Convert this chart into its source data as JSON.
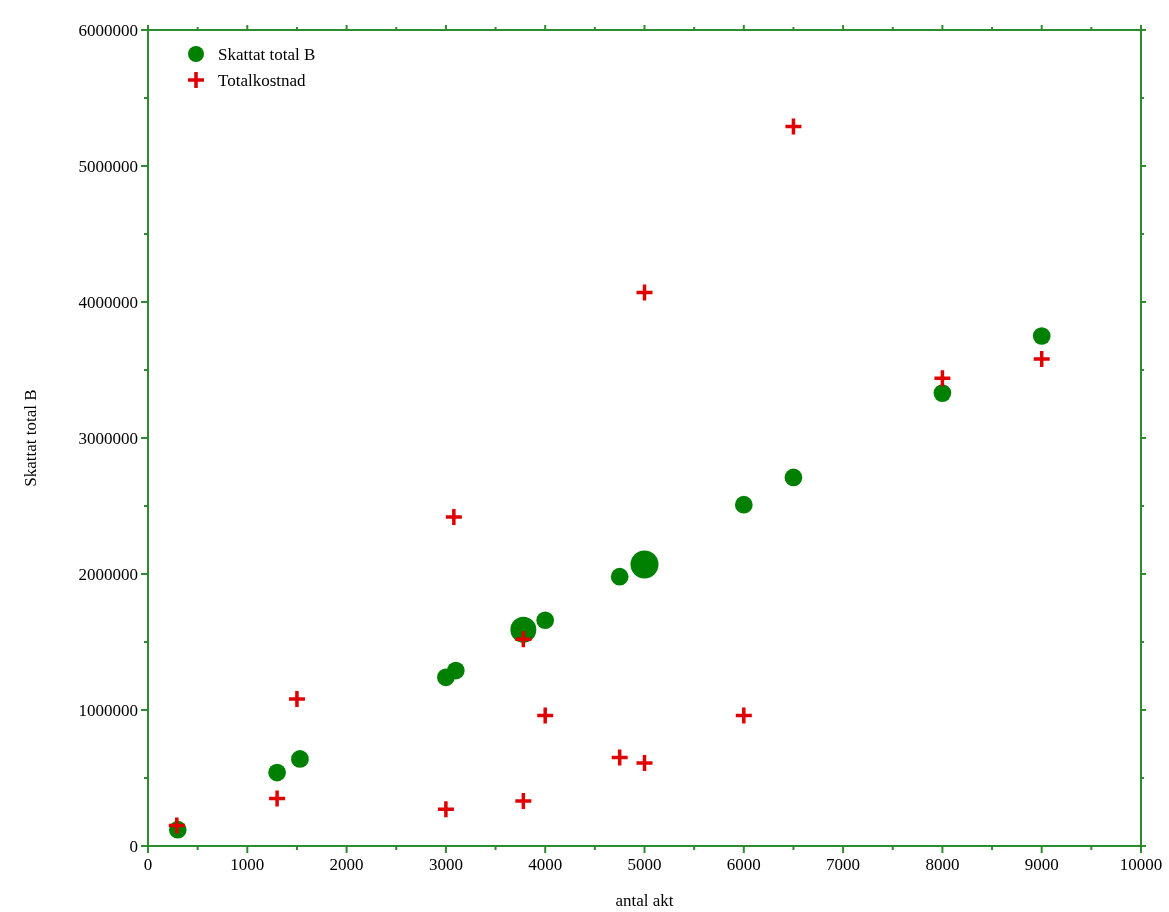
{
  "chart_data": {
    "type": "scatter",
    "xlabel": "antal akt",
    "ylabel": "Skattat total  B",
    "legend": "top left",
    "grid": false,
    "xlim": [
      0,
      10000
    ],
    "ylim": [
      0,
      6000000
    ],
    "xticks": [
      0,
      {
        "value": 500,
        "label": null
      },
      1000,
      {
        "value": 1500,
        "label": null
      },
      2000,
      {
        "value": 2500,
        "label": null
      },
      3000,
      {
        "value": 3500,
        "label": null
      },
      4000,
      {
        "value": 4500,
        "label": null
      },
      5000,
      {
        "value": 5500,
        "label": null
      },
      6000,
      {
        "value": 6500,
        "label": null
      },
      7000,
      {
        "value": 7500,
        "label": null
      },
      8000,
      {
        "value": 8500,
        "label": null
      },
      9000,
      {
        "value": 9500,
        "label": null
      },
      10000
    ],
    "yticks": [
      0,
      {
        "value": 500000,
        "label": null
      },
      1000000,
      {
        "value": 1500000,
        "label": null
      },
      2000000,
      {
        "value": 2500000,
        "label": null
      },
      3000000,
      {
        "value": 3500000,
        "label": null
      },
      4000000,
      {
        "value": 4500000,
        "label": null
      },
      5000000,
      {
        "value": 5500000,
        "label": null
      },
      6000000
    ],
    "series": [
      {
        "name": "Skattat total  B",
        "type": "bubble",
        "color": "#008000",
        "marker": "circle",
        "x": [
          300,
          1300,
          1530,
          3000,
          3100,
          3780,
          4000,
          4750,
          5000,
          6000,
          6500,
          8000,
          9000
        ],
        "values": [
          120000,
          540000,
          640000,
          1240000,
          1290000,
          1590000,
          1660000,
          1980000,
          2070000,
          2510000,
          2710000,
          3330000,
          3750000
        ],
        "sizes": [
          0.4,
          0.4,
          0.4,
          0.4,
          0.4,
          0.86,
          0.4,
          0.4,
          1,
          0.4,
          0.4,
          0.4,
          0.4
        ]
      },
      {
        "name": "Totalkostnad",
        "type": "scatter",
        "color": "#e00000",
        "marker": "cross",
        "x": [
          290,
          1300,
          1500,
          3000,
          3080,
          3780,
          3780,
          4000,
          4750,
          5000,
          5000,
          6000,
          6500,
          8000,
          9000
        ],
        "values": [
          150000,
          350000,
          1080000,
          270000,
          2420000,
          330000,
          1520000,
          960000,
          650000,
          610000,
          4070000,
          960000,
          5290000,
          3440000,
          3580000
        ]
      }
    ]
  }
}
